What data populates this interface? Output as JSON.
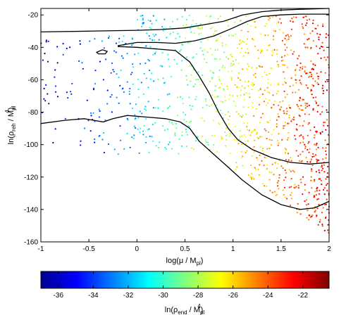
{
  "chart_data": {
    "type": "scatter",
    "title": "",
    "xlabel": "log(μ / M",
    "xlabel_sub": "pl",
    "xlabel_close": ")",
    "ylabel": "ln(ρ",
    "ylabel_sub": "reh",
    "ylabel_mid": " / M",
    "ylabel_sub2": "pl",
    "ylabel_sup": "4",
    "ylabel_close": ")",
    "xlim": [
      -1,
      2
    ],
    "ylim": [
      -160,
      -16
    ],
    "xticks": [
      "-1",
      "-0.5",
      "0",
      "0.5",
      "1",
      "1.5",
      "2"
    ],
    "xtick_values": [
      -1,
      -0.5,
      0,
      0.5,
      1,
      1.5,
      2
    ],
    "yticks": [
      "-20",
      "-40",
      "-60",
      "-80",
      "-100",
      "-120",
      "-140",
      "-160"
    ],
    "ytick_values": [
      -20,
      -40,
      -60,
      -80,
      -100,
      -120,
      -140,
      -160
    ],
    "grid": false,
    "colormap": "jet",
    "point_color_hint": "color encodes ln(rho_end / M_pl^4); blue (low) at small log(mu), dark red (high) at large log(mu)",
    "density_hint": "sparse near x=-1, dense red cloud for x > 0.8",
    "contours": [
      {
        "name": "outer-upper",
        "points": [
          [
            -1,
            -30.5
          ],
          [
            -0.5,
            -30
          ],
          [
            0,
            -29.5
          ],
          [
            0.25,
            -29
          ],
          [
            0.5,
            -28
          ],
          [
            0.7,
            -26
          ],
          [
            0.9,
            -24
          ],
          [
            1.1,
            -20
          ],
          [
            1.3,
            -18
          ],
          [
            1.5,
            -17
          ],
          [
            1.7,
            -16.5
          ],
          [
            2,
            -16
          ]
        ]
      },
      {
        "name": "inner-upper",
        "points": [
          [
            -0.2,
            -39
          ],
          [
            0.0,
            -37
          ],
          [
            0.2,
            -37
          ],
          [
            0.4,
            -37.5
          ],
          [
            0.6,
            -36
          ],
          [
            0.8,
            -33
          ],
          [
            1.0,
            -28
          ],
          [
            1.15,
            -24
          ],
          [
            1.3,
            -21
          ],
          [
            1.5,
            -20
          ],
          [
            1.7,
            -19.5
          ],
          [
            1.9,
            -19.5
          ],
          [
            2,
            -19.5
          ]
        ]
      },
      {
        "name": "inner-lower",
        "points": [
          [
            -0.2,
            -39.5
          ],
          [
            0.0,
            -40
          ],
          [
            0.2,
            -41
          ],
          [
            0.4,
            -42
          ],
          [
            0.55,
            -49
          ],
          [
            0.65,
            -58
          ],
          [
            0.75,
            -68
          ],
          [
            0.85,
            -80
          ],
          [
            0.95,
            -90
          ],
          [
            1.05,
            -97
          ],
          [
            1.2,
            -103
          ],
          [
            1.4,
            -108
          ],
          [
            1.6,
            -111
          ],
          [
            1.8,
            -112
          ],
          [
            2,
            -111
          ]
        ]
      },
      {
        "name": "outer-lower",
        "points": [
          [
            -1,
            -87
          ],
          [
            -0.75,
            -85
          ],
          [
            -0.55,
            -84
          ],
          [
            -0.35,
            -86
          ],
          [
            -0.25,
            -84
          ],
          [
            -0.1,
            -82
          ],
          [
            0.1,
            -83
          ],
          [
            0.3,
            -84
          ],
          [
            0.45,
            -86
          ],
          [
            0.55,
            -90
          ],
          [
            0.65,
            -98
          ],
          [
            0.8,
            -106
          ],
          [
            0.95,
            -114
          ],
          [
            1.1,
            -122
          ],
          [
            1.3,
            -131
          ],
          [
            1.5,
            -137
          ],
          [
            1.7,
            -140
          ],
          [
            1.85,
            -139
          ],
          [
            2,
            -135
          ]
        ]
      },
      {
        "name": "small-loop",
        "closed": true,
        "points": [
          [
            -0.42,
            -43
          ],
          [
            -0.36,
            -41.5
          ],
          [
            -0.31,
            -42.5
          ],
          [
            -0.33,
            -44
          ],
          [
            -0.4,
            -44
          ]
        ]
      }
    ],
    "colorbar": {
      "label": "ln(ρ",
      "label_sub": "end",
      "label_mid": " / M",
      "label_sub2": "pl",
      "label_sup": "4",
      "label_close": ")",
      "range": [
        -37,
        -20.5
      ],
      "ticks": [
        "-36",
        "-34",
        "-32",
        "-30",
        "-28",
        "-26",
        "-24",
        "-22"
      ],
      "tick_values": [
        -36,
        -34,
        -32,
        -30,
        -28,
        -26,
        -24,
        -22
      ],
      "colormap": "jet"
    }
  }
}
